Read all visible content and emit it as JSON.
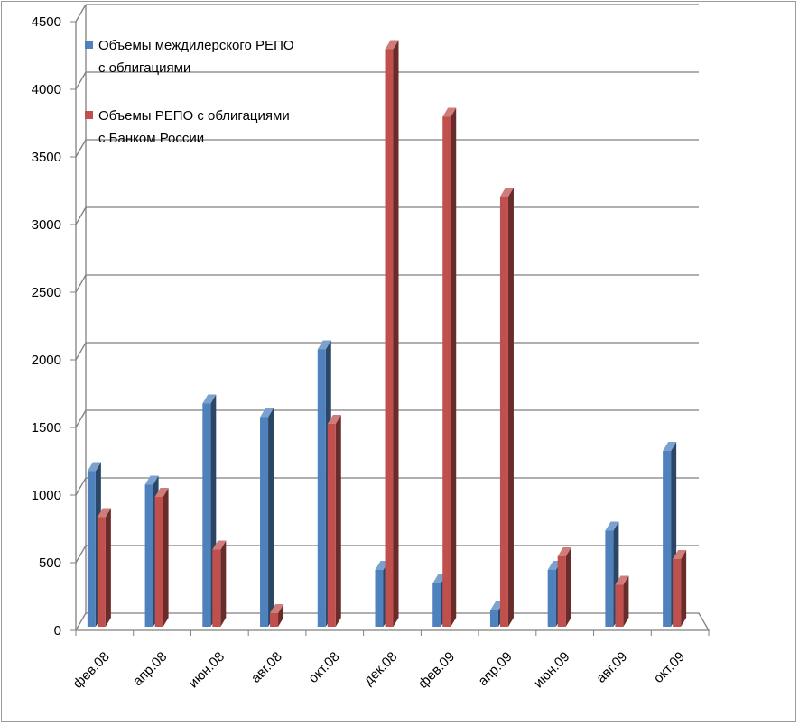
{
  "chart_data": {
    "type": "bar",
    "categories": [
      "фев.08",
      "апр.08",
      "июн.08",
      "авг.08",
      "окт.08",
      "дек.08",
      "фев.09",
      "апр.09",
      "июн.09",
      "авг.09",
      "окт.09"
    ],
    "series": [
      {
        "name_lines": [
          "Объемы междилерского РЕПО",
          "с облигациями"
        ],
        "color": "#4f81bd",
        "values": [
          1150,
          1050,
          1650,
          1550,
          2050,
          420,
          320,
          120,
          420,
          710,
          1300
        ]
      },
      {
        "name_lines": [
          "Объемы РЕПО с облигациями",
          "с Банком России"
        ],
        "color": "#c0504d",
        "values": [
          810,
          960,
          570,
          100,
          1500,
          4270,
          3770,
          3180,
          520,
          310,
          500
        ]
      }
    ],
    "yticks": [
      0,
      500,
      1000,
      1500,
      2000,
      2500,
      3000,
      3500,
      4000,
      4500
    ],
    "ylim": [
      0,
      4500
    ],
    "grid": true,
    "legend": "top-left"
  }
}
